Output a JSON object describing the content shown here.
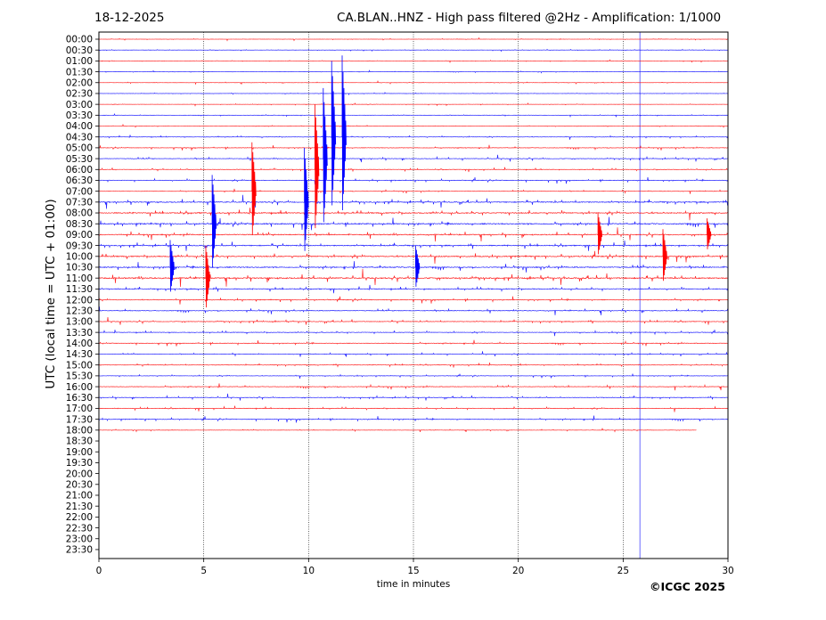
{
  "header": {
    "date": "18-12-2025",
    "title": "CA.BLAN..HNZ - High pass filtered @2Hz - Amplification: 1/1000"
  },
  "footer": {
    "copyright": "©ICGC 2025"
  },
  "chart_data": {
    "type": "line",
    "title": "CA.BLAN..HNZ - High pass filtered @2Hz - Amplification: 1/1000",
    "xlabel": "time in minutes",
    "ylabel": "UTC (local time = UTC + 01:00)",
    "xlim": [
      0,
      30
    ],
    "xticks": [
      "0",
      "5",
      "10",
      "15",
      "20",
      "25",
      "30"
    ],
    "grid_minutes": [
      5,
      10,
      15,
      20,
      25
    ],
    "marker_minute": 25.8,
    "colors": {
      "even": "#ff0000",
      "odd": "#0000ff",
      "marker": "#4444ff"
    },
    "rows": [
      "00:00",
      "00:30",
      "01:00",
      "01:30",
      "02:00",
      "02:30",
      "03:00",
      "03:30",
      "04:00",
      "04:30",
      "05:00",
      "05:30",
      "06:00",
      "06:30",
      "07:00",
      "07:30",
      "08:00",
      "08:30",
      "09:00",
      "09:30",
      "10:00",
      "10:30",
      "11:00",
      "11:30",
      "12:00",
      "12:30",
      "13:00",
      "13:30",
      "14:00",
      "14:30",
      "15:00",
      "15:30",
      "16:00",
      "16:30",
      "17:00",
      "17:30",
      "18:00",
      "18:30",
      "19:00",
      "19:30",
      "20:00",
      "20:30",
      "21:00",
      "21:30",
      "22:00",
      "22:30",
      "23:00",
      "23:30"
    ],
    "activity": [
      0.3,
      0.3,
      0.3,
      0.3,
      0.3,
      0.3,
      0.3,
      0.3,
      0.3,
      0.6,
      0.7,
      0.8,
      0.7,
      0.9,
      0.6,
      1.5,
      1.6,
      1.7,
      1.5,
      1.5,
      1.6,
      1.5,
      1.9,
      1.2,
      1.0,
      1.0,
      0.9,
      0.8,
      0.8,
      0.6,
      0.7,
      0.6,
      0.8,
      0.8,
      0.8,
      0.9,
      0.4
    ],
    "row_end_minute": {
      "36": 28.5
    },
    "events": [
      {
        "row": 14,
        "minute": 7.3,
        "amp": 9
      },
      {
        "row": 12,
        "minute": 10.3,
        "amp": 12
      },
      {
        "row": 11,
        "minute": 10.7,
        "amp": 13
      },
      {
        "row": 9,
        "minute": 11.1,
        "amp": 14
      },
      {
        "row": 9,
        "minute": 11.6,
        "amp": 15
      },
      {
        "row": 15,
        "minute": 9.8,
        "amp": 10
      },
      {
        "row": 17,
        "minute": 5.4,
        "amp": 9
      },
      {
        "row": 21,
        "minute": 3.4,
        "amp": 5
      },
      {
        "row": 22,
        "minute": 5.1,
        "amp": 6
      },
      {
        "row": 21,
        "minute": 15.1,
        "amp": 4
      },
      {
        "row": 18,
        "minute": 23.8,
        "amp": 4
      },
      {
        "row": 20,
        "minute": 26.9,
        "amp": 5
      },
      {
        "row": 18,
        "minute": 29.0,
        "amp": 3
      }
    ]
  }
}
